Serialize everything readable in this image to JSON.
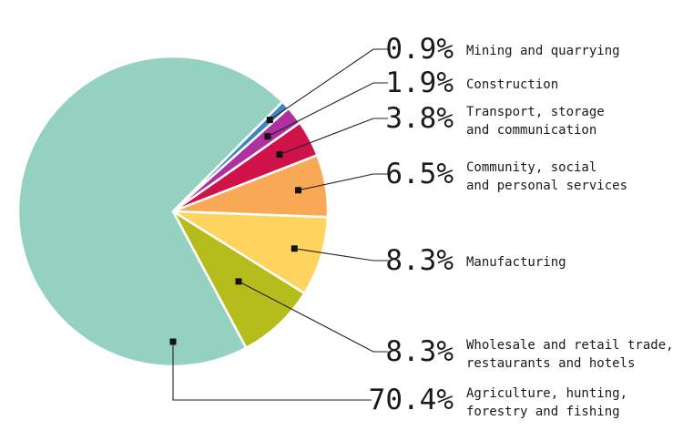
{
  "chart_data": {
    "type": "pie",
    "title": "",
    "slices": [
      {
        "label": "Mining and quarrying",
        "lines": [
          "Mining and quarrying"
        ],
        "value": 0.9,
        "value_label": "0.9%",
        "color": "#3d86c6"
      },
      {
        "label": "Construction",
        "lines": [
          "Construction"
        ],
        "value": 1.9,
        "value_label": "1.9%",
        "color": "#b0309f"
      },
      {
        "label": "Transport, storage and communication",
        "lines": [
          "Transport, storage",
          "and communication"
        ],
        "value": 3.8,
        "value_label": "3.8%",
        "color": "#cf1249"
      },
      {
        "label": "Community, social and personal services",
        "lines": [
          "Community, social",
          "and personal services"
        ],
        "value": 6.5,
        "value_label": "6.5%",
        "color": "#f9a855"
      },
      {
        "label": "Manufacturing",
        "lines": [
          "Manufacturing"
        ],
        "value": 8.3,
        "value_label": "8.3%",
        "color": "#fed45e"
      },
      {
        "label": "Wholesale and retail trade, restaurants and hotels",
        "lines": [
          "Wholesale and retail trade,",
          "restaurants and hotels"
        ],
        "value": 8.3,
        "value_label": "8.3%",
        "color": "#b4bd1c"
      },
      {
        "label": "Agriculture, hunting, forestry and fishing",
        "lines": [
          "Agriculture, hunting,",
          "forestry and fishing"
        ],
        "value": 70.4,
        "value_label": "70.4%",
        "color": "#95d1c1"
      }
    ]
  }
}
